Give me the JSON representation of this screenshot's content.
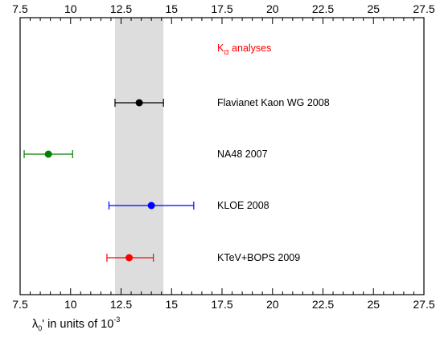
{
  "chart_data": {
    "type": "scatter",
    "title": "",
    "xlabel": {
      "prefix": "λ",
      "sub": "0",
      "middle": "' in units of 10",
      "sup": "-3"
    },
    "ylabel": "",
    "xlim": [
      7.5,
      27.5
    ],
    "x_ticks": [
      "7.5",
      "10",
      "12.5",
      "15",
      "17.5",
      "20",
      "22.5",
      "25",
      "27.5"
    ],
    "x_tick_values": [
      7.5,
      10,
      12.5,
      15,
      17.5,
      20,
      22.5,
      25,
      27.5
    ],
    "grid": false,
    "band": {
      "x_low": 12.2,
      "x_high": 14.6,
      "color": "#dddddd"
    },
    "header": {
      "main": "K",
      "sub": "l3",
      "rest": " analyses",
      "color": "#ff0000"
    },
    "points": [
      {
        "label": "Flavianet Kaon WG 2008",
        "x": 13.4,
        "xerr_low": 12.2,
        "xerr_high": 14.6,
        "color": "#000000"
      },
      {
        "label": "NA48 2007",
        "x": 8.9,
        "xerr_low": 7.7,
        "xerr_high": 10.1,
        "color": "#008000"
      },
      {
        "label": "KLOE 2008",
        "x": 14.0,
        "xerr_low": 11.9,
        "xerr_high": 16.1,
        "color": "#0000ff"
      },
      {
        "label": "KTeV+BOPS 2009",
        "x": 12.9,
        "xerr_low": 11.8,
        "xerr_high": 14.1,
        "color": "#ff0000"
      }
    ]
  }
}
